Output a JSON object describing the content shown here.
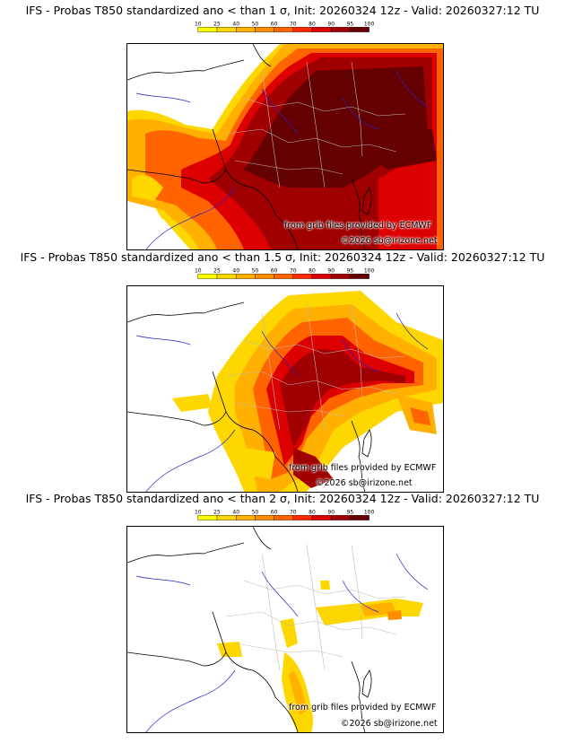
{
  "colorbar": {
    "ticks": [
      "10",
      "25",
      "40",
      "50",
      "60",
      "70",
      "80",
      "90",
      "95",
      "100"
    ],
    "colors": [
      "#ffff00",
      "#ffd700",
      "#ffb000",
      "#ff8c00",
      "#ff6400",
      "#ff2a00",
      "#dc0000",
      "#a00000",
      "#640000"
    ]
  },
  "panels": [
    {
      "title": "IFS - Probas T850  standardized ano < than 1 σ, Init: 20260324 12z - Valid: 20260327:12 TU",
      "credit_source": "from grib files provided by ECMWF",
      "credit_site": "©2026 sb@irizone.net"
    },
    {
      "title": "IFS - Probas T850  standardized ano < than 1.5 σ, Init: 20260324 12z - Valid: 20260327:12 TU",
      "credit_source": "from grib files provided by ECMWF",
      "credit_site": "©2026 sb@irizone.net"
    },
    {
      "title": "IFS - Probas T850  standardized ano < than 2 σ, Init: 20260324 12z - Valid: 20260327:12 TU",
      "credit_source": "from grib files provided by ECMWF",
      "credit_site": "©2026 sb@irizone.net"
    }
  ]
}
